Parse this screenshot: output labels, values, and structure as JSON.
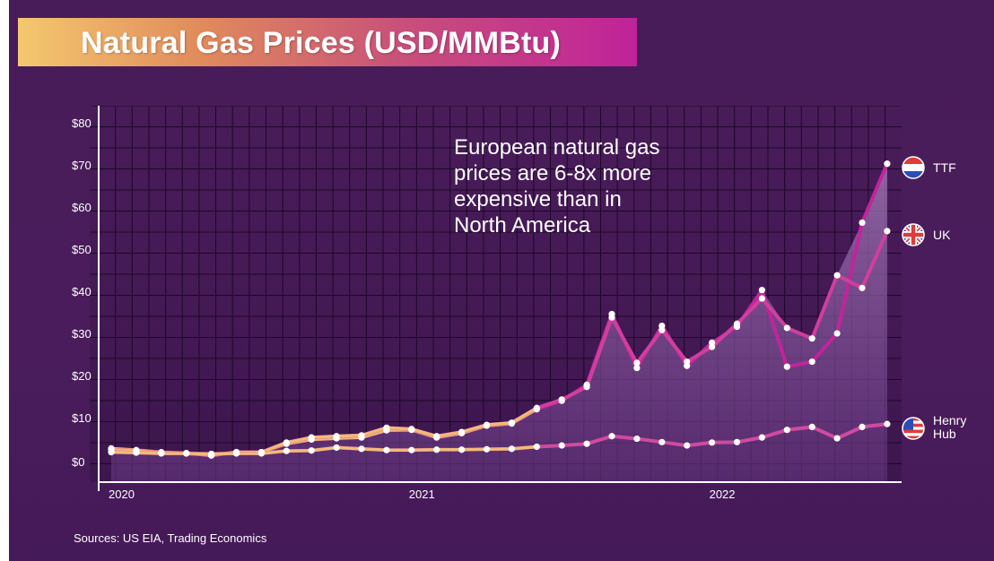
{
  "title": "Natural Gas Prices (USD/MMBtu)",
  "annotation": "European natural gas\nprices are 6-8x more\nexpensive than in\nNorth America",
  "source": "Sources: US EIA, Trading Economics",
  "colors": {
    "background": "#4a1c5c",
    "title_gradient": [
      "#f4c86e",
      "#c8507a",
      "#c0229a"
    ],
    "ttf_line": "#c2249a",
    "uk_line": "#d03e9e",
    "henry_hub_line": "#d04aa0",
    "early_line": "#f3c873",
    "area_fill": "#9b6fae"
  },
  "chart_data": {
    "type": "line",
    "title": "Natural Gas Prices (USD/MMBtu)",
    "xlabel": "",
    "ylabel": "",
    "ylim": [
      0,
      80
    ],
    "yticks": [
      0,
      10,
      20,
      30,
      40,
      50,
      60,
      70,
      80
    ],
    "ytick_labels": [
      "$0",
      "$10",
      "$20",
      "$30",
      "$40",
      "$50",
      "$60",
      "$70",
      "$80"
    ],
    "xtick_labels": [
      "2020",
      "2021",
      "2022"
    ],
    "x": [
      "2020-01",
      "2020-02",
      "2020-03",
      "2020-04",
      "2020-05",
      "2020-06",
      "2020-07",
      "2020-08",
      "2020-09",
      "2020-10",
      "2020-11",
      "2020-12",
      "2021-01",
      "2021-02",
      "2021-03",
      "2021-04",
      "2021-05",
      "2021-06",
      "2021-07",
      "2021-08",
      "2021-09",
      "2021-10",
      "2021-11",
      "2021-12",
      "2022-01",
      "2022-02",
      "2022-03",
      "2022-04",
      "2022-05",
      "2022-06",
      "2022-07",
      "2022-08"
    ],
    "grid": true,
    "legend_placement": "right",
    "series": [
      {
        "name": "TTF",
        "icon": "netherlands-flag-icon",
        "values": [
          2.9,
          2.5,
          2.0,
          1.8,
          1.2,
          2.0,
          2.0,
          4.0,
          5.0,
          5.3,
          5.5,
          7.2,
          7.3,
          5.5,
          6.5,
          8.3,
          8.8,
          12.2,
          14.2,
          18.0,
          34.8,
          22.0,
          32.0,
          22.5,
          28.0,
          31.8,
          40.5,
          22.3,
          23.5,
          30.2,
          56.5,
          70.5
        ]
      },
      {
        "name": "UK",
        "icon": "uk-flag-icon",
        "values": [
          2.6,
          2.3,
          1.9,
          1.7,
          1.3,
          2.0,
          2.0,
          4.3,
          5.5,
          5.8,
          6.0,
          7.8,
          7.5,
          5.8,
          6.8,
          8.5,
          9.0,
          12.5,
          14.5,
          17.5,
          34.0,
          23.2,
          31.0,
          23.5,
          27.0,
          32.5,
          38.5,
          31.5,
          29.0,
          44.0,
          41.0,
          54.5
        ]
      },
      {
        "name": "Henry Hub",
        "icon": "us-flag-icon",
        "values": [
          2.0,
          1.9,
          1.7,
          1.7,
          1.6,
          1.7,
          1.7,
          2.3,
          2.4,
          3.1,
          2.8,
          2.5,
          2.5,
          2.6,
          2.6,
          2.7,
          2.8,
          3.3,
          3.6,
          4.0,
          5.8,
          5.2,
          4.4,
          3.6,
          4.3,
          4.4,
          5.5,
          7.3,
          8.0,
          5.3,
          8.0,
          8.7
        ]
      }
    ]
  }
}
